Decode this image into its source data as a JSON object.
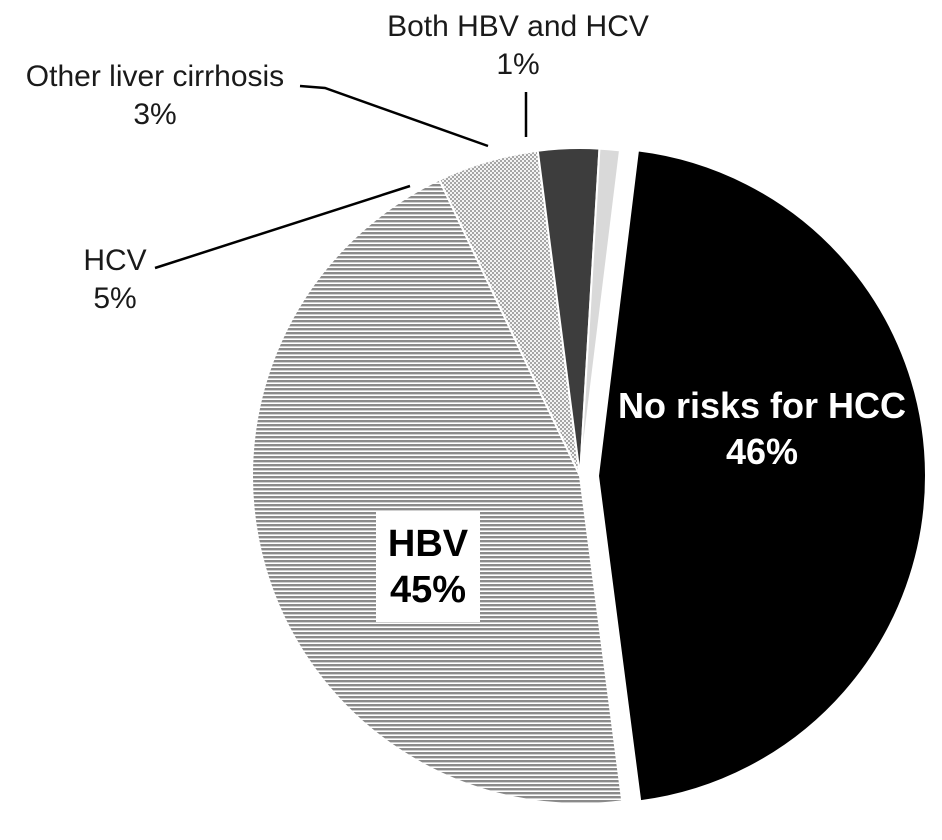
{
  "chart_data": {
    "type": "pie",
    "title": "",
    "slices": [
      {
        "label": "No risks for HCC",
        "value": 46,
        "value_label": "46%",
        "color": "#000000",
        "pattern": "solid",
        "exploded": true
      },
      {
        "label": "HBV",
        "value": 45,
        "value_label": "45%",
        "color": "#a8a8a8",
        "pattern": "horizontal-lines"
      },
      {
        "label": "HCV",
        "value": 5,
        "value_label": "5%",
        "color": "#e6e6e6",
        "pattern": "dots"
      },
      {
        "label": "Other liver cirrhosis",
        "value": 3,
        "value_label": "3%",
        "color": "#3d3d3d",
        "pattern": "solid"
      },
      {
        "label": "Both HBV and HCV",
        "value": 1,
        "value_label": "1%",
        "color": "#d9d9d9",
        "pattern": "solid"
      }
    ],
    "legend": "none",
    "label_placement": "data labels with leader lines"
  }
}
